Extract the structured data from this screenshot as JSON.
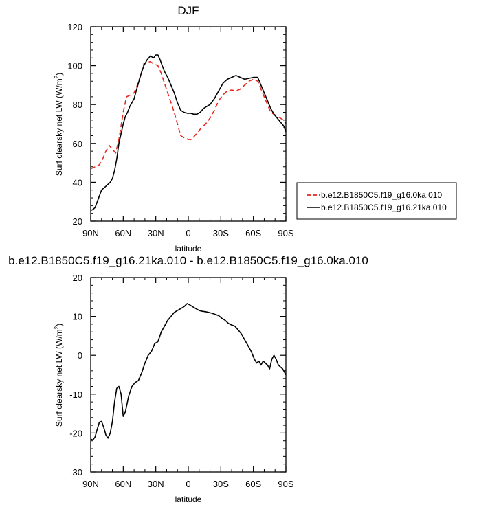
{
  "chart_data": [
    {
      "type": "line",
      "title": "DJF",
      "xlabel": "latitude",
      "ylabel": "Surf clearsky net LW (W/m",
      "ylabel_sup": "2",
      "ylabel_end": ")",
      "xlim": [
        90,
        -90
      ],
      "ylim": [
        20,
        120
      ],
      "xticks": [
        {
          "v": 90,
          "label": "90N"
        },
        {
          "v": 60,
          "label": "60N"
        },
        {
          "v": 30,
          "label": "30N"
        },
        {
          "v": 0,
          "label": "0"
        },
        {
          "v": -30,
          "label": "30S"
        },
        {
          "v": -60,
          "label": "60S"
        },
        {
          "v": -90,
          "label": "90S"
        }
      ],
      "yticks": [
        20,
        40,
        60,
        80,
        100,
        120
      ],
      "legend": "right",
      "series": [
        {
          "name": "b.e12.B1850C5.f19_g16.0ka.010",
          "color": "#e8261f",
          "dash": true,
          "x": [
            90,
            86,
            82,
            79,
            76,
            73,
            70,
            67,
            64,
            60,
            57,
            53,
            50,
            47,
            44,
            41,
            38,
            35,
            32,
            28,
            25,
            22,
            19,
            16,
            13,
            10,
            7,
            4,
            0,
            -3,
            -6,
            -9,
            -12,
            -16,
            -20,
            -24,
            -28,
            -32,
            -36,
            -40,
            -44,
            -48,
            -52,
            -56,
            -60,
            -64,
            -67,
            -70,
            -73,
            -76,
            -79,
            -82,
            -85,
            -88,
            -90
          ],
          "y": [
            47,
            48,
            49,
            52,
            56,
            59,
            57,
            55,
            62,
            76,
            84,
            85,
            86,
            90,
            95,
            101,
            102,
            102,
            101,
            100,
            96,
            91,
            86,
            81,
            76,
            70,
            64,
            63,
            62,
            62,
            64,
            66,
            68,
            70,
            73,
            77,
            82,
            85,
            87,
            87.5,
            87,
            88,
            90,
            92,
            93,
            92,
            88,
            84,
            80,
            76,
            75,
            74,
            73,
            72,
            70
          ]
        },
        {
          "name": "b.e12.B1850C5.f19_g16.21ka.010",
          "color": "#000000",
          "dash": false,
          "x": [
            90,
            88,
            86,
            84,
            82,
            80,
            78,
            76,
            74,
            72,
            70,
            68,
            66,
            64,
            62,
            60,
            58,
            56,
            54,
            52,
            50,
            47,
            44,
            41,
            38,
            35,
            32,
            30,
            28,
            26,
            24,
            22,
            19,
            16,
            13,
            10,
            7,
            4,
            1,
            -2,
            -5,
            -8,
            -11,
            -14,
            -17,
            -20,
            -24,
            -28,
            -32,
            -36,
            -40,
            -44,
            -48,
            -52,
            -56,
            -60,
            -64,
            -67,
            -70,
            -73,
            -76,
            -79,
            -82,
            -85,
            -88,
            -90
          ],
          "y": [
            25.5,
            26,
            27,
            30,
            33,
            36,
            37,
            38,
            39,
            40,
            42,
            46,
            52,
            60,
            65,
            70,
            74,
            76,
            79,
            81,
            83,
            89,
            95,
            100,
            103,
            105,
            104,
            105.5,
            105.5,
            103,
            100,
            97,
            94,
            90,
            86,
            81,
            77,
            76,
            75.5,
            75.5,
            75,
            75,
            76,
            78,
            79,
            80,
            83,
            87,
            91,
            93,
            94,
            95,
            94,
            93,
            93.5,
            94,
            94,
            90,
            86,
            82,
            78,
            75,
            73,
            71,
            69,
            66
          ]
        }
      ]
    },
    {
      "type": "line",
      "title": "b.e12.B1850C5.f19_g16.21ka.010 - b.e12.B1850C5.f19_g16.0ka.010",
      "xlabel": "latitude",
      "ylabel": "Surf clearsky net LW (W/m",
      "ylabel_sup": "2",
      "ylabel_end": ")",
      "xlim": [
        90,
        -90
      ],
      "ylim": [
        -30,
        20
      ],
      "xticks": [
        {
          "v": 90,
          "label": "90N"
        },
        {
          "v": 60,
          "label": "60N"
        },
        {
          "v": 30,
          "label": "30N"
        },
        {
          "v": 0,
          "label": "0"
        },
        {
          "v": -30,
          "label": "30S"
        },
        {
          "v": -60,
          "label": "60S"
        },
        {
          "v": -90,
          "label": "90S"
        }
      ],
      "yticks": [
        -30,
        -20,
        -10,
        0,
        10,
        20
      ],
      "series": [
        {
          "color": "#000000",
          "dash": false,
          "x": [
            90,
            88,
            86,
            84,
            82,
            80,
            78,
            76,
            74,
            72,
            70,
            68,
            66,
            64,
            62,
            60,
            58,
            55,
            52,
            49,
            46,
            43,
            40,
            37,
            34,
            31,
            28,
            25,
            22,
            19,
            16,
            13,
            10,
            7,
            4,
            1,
            -1,
            -4,
            -7,
            -10,
            -13,
            -16,
            -19,
            -22,
            -25,
            -28,
            -31,
            -34,
            -37,
            -40,
            -43,
            -46,
            -49,
            -52,
            -55,
            -58,
            -61,
            -63,
            -65,
            -67,
            -69,
            -71,
            -73,
            -75,
            -77,
            -79,
            -81,
            -83,
            -85,
            -87,
            -89,
            -90
          ],
          "y": [
            -21.5,
            -21.8,
            -21,
            -19,
            -17.2,
            -17,
            -18.5,
            -20.5,
            -21.3,
            -20,
            -17,
            -12,
            -8.5,
            -8,
            -10,
            -15.7,
            -14.5,
            -10.5,
            -8,
            -7,
            -6.5,
            -4.5,
            -2,
            0,
            1,
            3,
            3.5,
            6,
            7.5,
            9,
            10,
            11,
            11.5,
            12,
            12.5,
            13.3,
            13,
            12.5,
            12,
            11.5,
            11.3,
            11.2,
            11,
            10.8,
            10.5,
            10.2,
            9.5,
            9,
            8.2,
            7.8,
            7.5,
            6.5,
            5.5,
            4,
            2.5,
            1,
            -1,
            -2,
            -1.5,
            -2.5,
            -1.5,
            -2,
            -2.5,
            -3.5,
            -1,
            0,
            -1,
            -2.5,
            -3,
            -3.5,
            -4.5,
            -5
          ]
        }
      ]
    }
  ]
}
